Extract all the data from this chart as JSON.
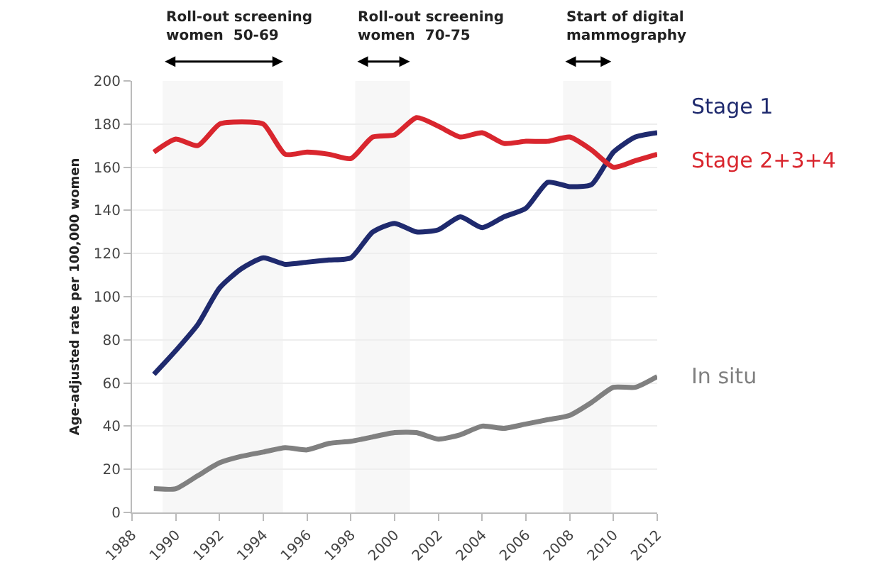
{
  "chart_data": {
    "type": "line",
    "ylabel": "Age-adjusted rate per 100,000 women",
    "x": [
      1989,
      1990,
      1991,
      1992,
      1993,
      1994,
      1995,
      1996,
      1997,
      1998,
      1999,
      2000,
      2001,
      2002,
      2003,
      2004,
      2005,
      2006,
      2007,
      2008,
      2009,
      2010,
      2011,
      2012
    ],
    "series": [
      {
        "name": "Stage 1",
        "color": "#1f2a6e",
        "values": [
          64,
          75,
          87,
          104,
          113,
          118,
          115,
          116,
          117,
          118,
          130,
          134,
          130,
          131,
          137,
          132,
          137,
          141,
          153,
          151,
          152,
          167,
          174,
          176
        ]
      },
      {
        "name": "Stage 2+3+4",
        "color": "#d9262e",
        "values": [
          167,
          173,
          170,
          180,
          181,
          180,
          166,
          167,
          166,
          164,
          174,
          175,
          183,
          179,
          174,
          176,
          171,
          172,
          172,
          174,
          168,
          160,
          163,
          166
        ]
      },
      {
        "name": "In situ",
        "color": "#808080",
        "values": [
          11,
          11,
          17,
          23,
          26,
          28,
          30,
          29,
          32,
          33,
          35,
          37,
          37,
          34,
          36,
          40,
          39,
          41,
          43,
          45,
          51,
          58,
          58,
          63
        ]
      }
    ],
    "bands": [
      {
        "axis": "x",
        "from": 1989.4,
        "to": 1994.9,
        "label": "Roll-out screening\nwomen  50-69"
      },
      {
        "axis": "x",
        "from": 1998.2,
        "to": 2000.7,
        "label": "Roll-out screening\nwomen  70-75"
      },
      {
        "axis": "x",
        "from": 2007.7,
        "to": 2009.9,
        "label": "Start of digital\nmammography"
      }
    ],
    "xlim": [
      1988,
      2012
    ],
    "xticks": [
      1988,
      1990,
      1992,
      1994,
      1996,
      1998,
      2000,
      2002,
      2004,
      2006,
      2008,
      2010,
      2012
    ],
    "ylim": [
      0,
      200
    ],
    "yticks": [
      0,
      20,
      40,
      60,
      80,
      100,
      120,
      140,
      160,
      180,
      200
    ],
    "grid": "y",
    "legend": false,
    "marker": "none",
    "line_style": "solid"
  }
}
